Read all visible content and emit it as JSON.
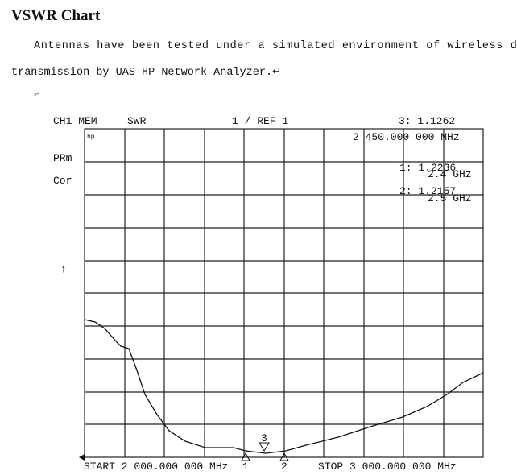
{
  "header": {
    "title": "VSWR Chart"
  },
  "paragraph": {
    "lines": [
      "Antennas have been tested under a simulated environment of wireless data",
      "transmission by UAS HP Network Analyzer.↵"
    ],
    "blank": "↵"
  },
  "plot": {
    "channel": "CH1 MEM",
    "format": "SWR",
    "scale": "1 / REF 1",
    "marker_readout": "3: 1.1262",
    "marker_freq": "2 450.000 000 MHz",
    "logo": "hp",
    "status1": "PRm",
    "status2": "Cor",
    "ref_arrow": "↑",
    "markers": [
      {
        "value": "1: 1.2236",
        "freq": "2.4 GHz"
      },
      {
        "value": "2: 1.2157",
        "freq": "2.5 GHz"
      }
    ],
    "marker_labels": [
      "1",
      "3",
      "2"
    ],
    "start": "START 2 000.000 000 MHz",
    "stop": "STOP 3 000.000 000 MHz"
  }
}
